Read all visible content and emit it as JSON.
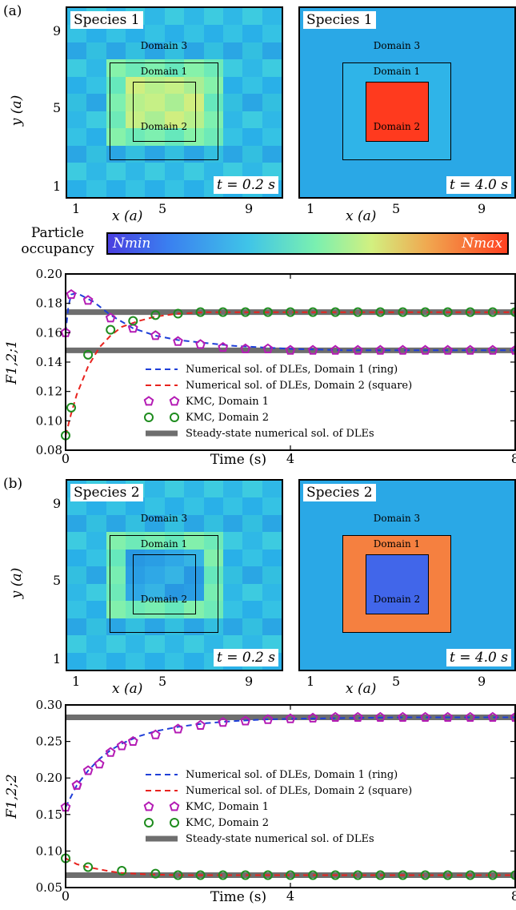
{
  "panel_a": {
    "letter": "(a)",
    "heatmaps": [
      {
        "species": "Species 1",
        "time": "t = 0.2 s"
      },
      {
        "species": "Species 1",
        "time": "t = 4.0 s"
      }
    ]
  },
  "panel_b": {
    "letter": "(b)",
    "heatmaps": [
      {
        "species": "Species 2",
        "time": "t = 0.2 s"
      },
      {
        "species": "Species 2",
        "time": "t = 4.0 s"
      }
    ]
  },
  "domain_labels": {
    "d1": "Domain 1",
    "d2": "Domain 2",
    "d3": "Domain 3"
  },
  "heatmap_axes": {
    "xlabel": "x (a)",
    "ylabel": "y (a)",
    "xticks": [
      "1",
      "5",
      "9"
    ],
    "yticks": [
      "9",
      "5",
      "1"
    ]
  },
  "colorbar": {
    "label_line1": "Particle",
    "label_line2": "occupancy",
    "min": "Nmin",
    "max": "Nmax"
  },
  "colors": {
    "ring_4s_species1": "#2fb4e8",
    "square_4s_species1": "#ff3a1e",
    "ring_4s_species2": "#f58040",
    "square_4s_species2": "#4166ea",
    "background_4s": "#2aa8e6",
    "blue_line": "#1f3fd8",
    "red_line": "#e8231e",
    "purple_marker": "#b41bb4",
    "green_marker": "#1e8c1e",
    "steady_state": "#6e6e6e"
  },
  "chart_data": [
    {
      "type": "line",
      "title": "",
      "xlabel": "Time (s)",
      "ylabel": "F1,2;1",
      "xlim": [
        0,
        8
      ],
      "ylim": [
        0.08,
        0.2
      ],
      "xticks": [
        "0",
        "4",
        "8"
      ],
      "yticks": [
        "0.20",
        "0.18",
        "0.16",
        "0.14",
        "0.12",
        "0.10",
        "0.08"
      ],
      "legend": [
        {
          "label": "Numerical sol. of DLEs, Domain 1 (ring)",
          "kind": "dash",
          "color": "#1f3fd8"
        },
        {
          "label": "Numerical sol. of DLEs, Domain 2 (square)",
          "kind": "dash",
          "color": "#e8231e"
        },
        {
          "label": "KMC, Domain 1",
          "kind": "pentagon",
          "color": "#b41bb4"
        },
        {
          "label": "KMC, Domain 2",
          "kind": "circle",
          "color": "#1e8c1e"
        },
        {
          "label": "Steady-state numerical sol. of DLEs",
          "kind": "band",
          "color": "#6e6e6e"
        }
      ],
      "steady_state": [
        0.174,
        0.148
      ],
      "series": [
        {
          "kind": "line",
          "color": "#1f3fd8",
          "x": [
            0,
            0.05,
            0.1,
            0.2,
            0.3,
            0.5,
            0.8,
            1.2,
            1.6,
            2.0,
            2.5,
            3,
            3.5,
            4,
            5,
            6,
            7,
            8
          ],
          "y": [
            0.16,
            0.178,
            0.186,
            0.187,
            0.185,
            0.181,
            0.172,
            0.163,
            0.158,
            0.155,
            0.153,
            0.151,
            0.15,
            0.149,
            0.148,
            0.148,
            0.148,
            0.148
          ]
        },
        {
          "kind": "line",
          "color": "#e8231e",
          "x": [
            0,
            0.1,
            0.2,
            0.4,
            0.6,
            0.8,
            1.0,
            1.3,
            1.6,
            2.0,
            2.5,
            3,
            4,
            5,
            6,
            7,
            8
          ],
          "y": [
            0.09,
            0.105,
            0.118,
            0.137,
            0.15,
            0.158,
            0.164,
            0.168,
            0.171,
            0.173,
            0.174,
            0.174,
            0.174,
            0.174,
            0.174,
            0.174,
            0.174
          ]
        },
        {
          "kind": "pentagon",
          "color": "#b41bb4",
          "x": [
            0,
            0.1,
            0.4,
            0.8,
            1.2,
            1.6,
            2.0,
            2.4,
            2.8,
            3.2,
            3.6,
            4.0,
            4.4,
            4.8,
            5.2,
            5.6,
            6.0,
            6.4,
            6.8,
            7.2,
            7.6,
            8.0
          ],
          "y": [
            0.16,
            0.186,
            0.182,
            0.17,
            0.163,
            0.158,
            0.154,
            0.152,
            0.15,
            0.149,
            0.149,
            0.148,
            0.148,
            0.148,
            0.148,
            0.148,
            0.148,
            0.148,
            0.148,
            0.148,
            0.148,
            0.148
          ]
        },
        {
          "kind": "circle",
          "color": "#1e8c1e",
          "x": [
            0,
            0.1,
            0.4,
            0.8,
            1.2,
            1.6,
            2.0,
            2.4,
            2.8,
            3.2,
            3.6,
            4.0,
            4.4,
            4.8,
            5.2,
            5.6,
            6.0,
            6.4,
            6.8,
            7.2,
            7.6,
            8.0
          ],
          "y": [
            0.09,
            0.109,
            0.145,
            0.162,
            0.168,
            0.172,
            0.173,
            0.174,
            0.174,
            0.174,
            0.174,
            0.174,
            0.174,
            0.174,
            0.174,
            0.174,
            0.174,
            0.174,
            0.174,
            0.174,
            0.174,
            0.174
          ]
        }
      ]
    },
    {
      "type": "line",
      "title": "",
      "xlabel": "Time (s)",
      "ylabel": "F1,2;2",
      "xlim": [
        0,
        8
      ],
      "ylim": [
        0.05,
        0.3
      ],
      "xticks": [
        "0",
        "4",
        "8"
      ],
      "yticks": [
        "0.30",
        "0.25",
        "0.20",
        "0.15",
        "0.10",
        "0.05"
      ],
      "legend": [
        {
          "label": "Numerical sol. of DLEs, Domain 1 (ring)",
          "kind": "dash",
          "color": "#1f3fd8"
        },
        {
          "label": "Numerical sol. of DLEs, Domain 2 (square)",
          "kind": "dash",
          "color": "#e8231e"
        },
        {
          "label": "KMC, Domain 1",
          "kind": "pentagon",
          "color": "#b41bb4"
        },
        {
          "label": "KMC, Domain 2",
          "kind": "circle",
          "color": "#1e8c1e"
        },
        {
          "label": "Steady-state numerical sol. of DLEs",
          "kind": "band",
          "color": "#6e6e6e"
        }
      ],
      "steady_state": [
        0.283,
        0.067
      ],
      "series": [
        {
          "kind": "line",
          "color": "#1f3fd8",
          "x": [
            0,
            0.2,
            0.4,
            0.6,
            0.8,
            1.0,
            1.3,
            1.6,
            2.0,
            2.5,
            3,
            3.5,
            4,
            5,
            6,
            7,
            8
          ],
          "y": [
            0.16,
            0.19,
            0.21,
            0.226,
            0.238,
            0.247,
            0.257,
            0.264,
            0.27,
            0.275,
            0.278,
            0.28,
            0.281,
            0.282,
            0.283,
            0.283,
            0.283
          ]
        },
        {
          "kind": "line",
          "color": "#e8231e",
          "x": [
            0,
            0.2,
            0.4,
            0.6,
            0.8,
            1.0,
            1.5,
            2,
            3,
            4,
            5,
            6,
            7,
            8
          ],
          "y": [
            0.09,
            0.082,
            0.078,
            0.075,
            0.072,
            0.07,
            0.068,
            0.067,
            0.067,
            0.067,
            0.067,
            0.067,
            0.067,
            0.067
          ]
        },
        {
          "kind": "pentagon",
          "color": "#b41bb4",
          "x": [
            0,
            0.2,
            0.6,
            1.0,
            1.6,
            2.4,
            3.2,
            4.0,
            4.8,
            5.6,
            6.4,
            7.2,
            8.0,
            0.2,
            0.4,
            0.8,
            1.2,
            2.0,
            2.8,
            3.6,
            4.4,
            5.2,
            6.0,
            6.8,
            7.6
          ],
          "y": [
            0.16,
            0.19,
            0.219,
            0.244,
            0.259,
            0.272,
            0.278,
            0.281,
            0.283,
            0.283,
            0.283,
            0.283,
            0.283,
            0.19,
            0.21,
            0.235,
            0.25,
            0.267,
            0.276,
            0.28,
            0.282,
            0.283,
            0.283,
            0.283,
            0.283
          ]
        },
        {
          "kind": "circle",
          "color": "#1e8c1e",
          "x": [
            0,
            0.4,
            1.0,
            1.6,
            2.4,
            3.2,
            4.0,
            4.8,
            5.6,
            6.4,
            7.2,
            8.0,
            2.0,
            2.8,
            3.6,
            4.4,
            5.2,
            6.0,
            6.8,
            7.6
          ],
          "y": [
            0.09,
            0.078,
            0.073,
            0.069,
            0.067,
            0.067,
            0.067,
            0.067,
            0.067,
            0.067,
            0.067,
            0.067,
            0.067,
            0.067,
            0.067,
            0.067,
            0.067,
            0.067,
            0.067,
            0.067
          ]
        }
      ]
    }
  ]
}
